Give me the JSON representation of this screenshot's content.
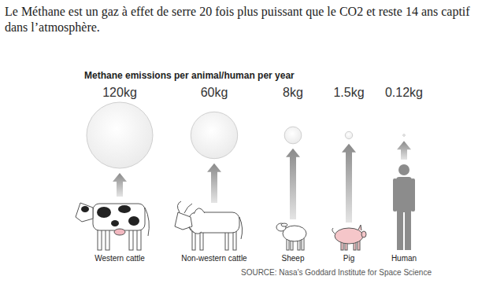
{
  "chart_data": {
    "type": "bubble",
    "annotation": "Le Méthane est un gaz à effet de serre 20 fois plus puissant que le CO2 et reste 14 ans captif dans l’atmosphère.",
    "title": "Methane emissions per animal/human per year",
    "categories": [
      "Western cattle",
      "Non-western cattle",
      "Sheep",
      "Pig",
      "Human"
    ],
    "values": [
      120,
      60,
      8,
      1.5,
      0.12
    ],
    "value_labels": [
      "120kg",
      "60kg",
      "8kg",
      "1.5kg",
      "0.12kg"
    ],
    "data_labels": true,
    "color": "#ebebeb",
    "source": "SOURCE: Nasa's Goddard Institute for Space Science"
  }
}
